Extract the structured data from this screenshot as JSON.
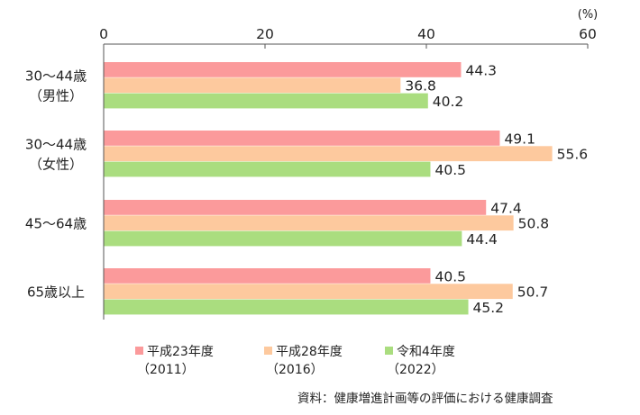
{
  "chart_data": {
    "type": "bar",
    "orientation": "horizontal",
    "unit": "(%)",
    "xlim": [
      0,
      60
    ],
    "ticks": [
      0,
      20,
      40,
      60
    ],
    "grid": false,
    "legend_placement": "bottom",
    "categories": [
      [
        "30～44歳",
        "（男性）"
      ],
      [
        "30～44歳",
        "（女性）"
      ],
      [
        "45～64歳"
      ],
      [
        "65歳以上"
      ]
    ],
    "series": [
      {
        "name": "平成23年度",
        "name_sub": "（2011）",
        "color": "#fb9a9b",
        "values": [
          44.3,
          49.1,
          47.4,
          40.5
        ]
      },
      {
        "name": "平成28年度",
        "name_sub": "（2016）",
        "color": "#fdc99e",
        "values": [
          36.8,
          55.6,
          50.8,
          50.7
        ]
      },
      {
        "name": "令和4年度",
        "name_sub": "（2022）",
        "color": "#aadd7f",
        "values": [
          40.2,
          40.5,
          44.4,
          45.2
        ]
      }
    ],
    "source": "資料：健康増進計画等の評価における健康調査"
  }
}
